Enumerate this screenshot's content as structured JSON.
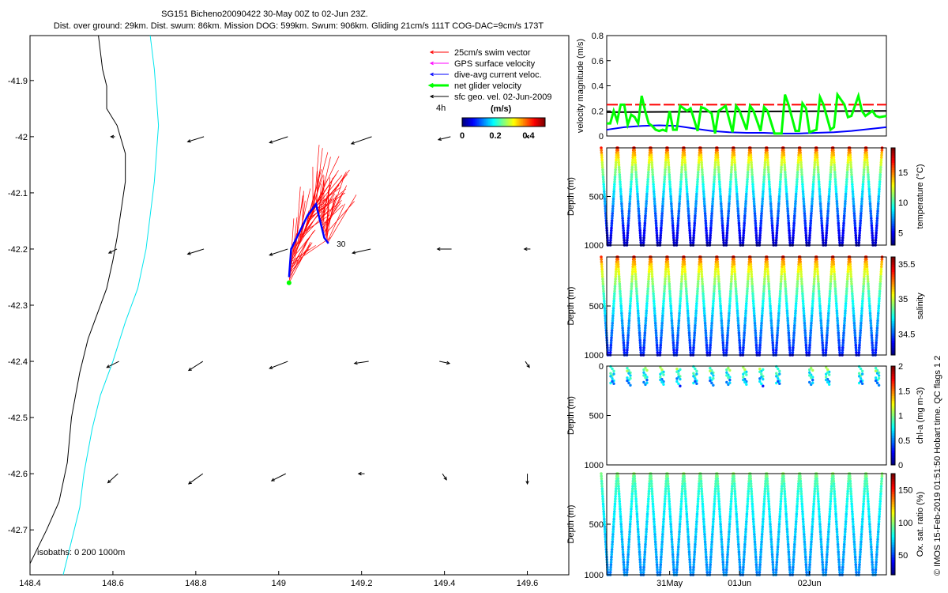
{
  "header": {
    "title": "SG151 Bicheno20090422 30-May 00Z to 02-Jun 23Z.",
    "subtitle": "Dist. over ground: 29km. Dist. swum: 86km. Mission DOG: 599km. Swum: 906km. Gliding 21cm/s 111T COG-DAC=9cm/s 173T"
  },
  "colors": {
    "swim": "#ff0000",
    "gps": "#ff00ff",
    "dac": "#0000ff",
    "net": "#00ff00",
    "geo": "#000000",
    "coast": "#000000",
    "isobath200": "#00e5ee"
  },
  "chart_data": [
    {
      "type": "vector-map",
      "xlim": [
        148.4,
        149.7
      ],
      "ylim": [
        -42.78,
        -41.82
      ],
      "xticks": [
        "148.4",
        "148.6",
        "148.8",
        "149",
        "149.2",
        "149.4",
        "149.6"
      ],
      "yticks": [
        "-41.9",
        "-42",
        "-42.1",
        "-42.2",
        "-42.3",
        "-42.4",
        "-42.5",
        "-42.6",
        "-42.7"
      ],
      "legend": {
        "placement": "top-right",
        "entries": [
          "25cm/s swim vector",
          "GPS surface velocity",
          "dive-avg current veloc.",
          "net glider velocity",
          "sfc geo. vel. 02-Jun-2009"
        ],
        "time_label": "4h",
        "units_label": "(m/s)",
        "colorbar_ticks": [
          "0",
          "0.2",
          "0.4"
        ],
        "colorbar_range": [
          0,
          0.5
        ]
      },
      "isobath_label": "isobaths: 0   200  1000m",
      "track_label": "30",
      "geo_vectors": [
        {
          "lon": 148.6,
          "lat": -42.0,
          "u": 0.02,
          "v": 0.0
        },
        {
          "lon": 148.8,
          "lat": -42.0,
          "u": 0.08,
          "v": 0.05
        },
        {
          "lon": 149.0,
          "lat": -42.0,
          "u": 0.09,
          "v": 0.06
        },
        {
          "lon": 149.2,
          "lat": -42.0,
          "u": 0.1,
          "v": 0.07
        },
        {
          "lon": 149.4,
          "lat": -42.0,
          "u": 0.06,
          "v": 0.03
        },
        {
          "lon": 149.6,
          "lat": -42.0,
          "u": 0.01,
          "v": 0.0
        },
        {
          "lon": 148.6,
          "lat": -42.2,
          "u": 0.04,
          "v": 0.04
        },
        {
          "lon": 148.8,
          "lat": -42.2,
          "u": 0.08,
          "v": 0.05
        },
        {
          "lon": 149.0,
          "lat": -42.2,
          "u": 0.09,
          "v": 0.06
        },
        {
          "lon": 149.2,
          "lat": -42.2,
          "u": 0.09,
          "v": 0.04
        },
        {
          "lon": 149.4,
          "lat": -42.2,
          "u": 0.07,
          "v": 0.0
        },
        {
          "lon": 149.6,
          "lat": -42.2,
          "u": 0.03,
          "v": 0.0
        },
        {
          "lon": 148.6,
          "lat": -42.4,
          "u": 0.06,
          "v": 0.06
        },
        {
          "lon": 148.8,
          "lat": -42.4,
          "u": 0.07,
          "v": 0.09
        },
        {
          "lon": 149.0,
          "lat": -42.4,
          "u": 0.09,
          "v": 0.07
        },
        {
          "lon": 149.2,
          "lat": -42.4,
          "u": 0.07,
          "v": 0.02
        },
        {
          "lon": 149.4,
          "lat": -42.4,
          "u": -0.05,
          "v": 0.02
        },
        {
          "lon": 149.6,
          "lat": -42.4,
          "u": -0.02,
          "v": 0.06
        },
        {
          "lon": 148.6,
          "lat": -42.6,
          "u": 0.05,
          "v": 0.09
        },
        {
          "lon": 148.8,
          "lat": -42.6,
          "u": 0.07,
          "v": 0.1
        },
        {
          "lon": 149.0,
          "lat": -42.6,
          "u": 0.07,
          "v": 0.07
        },
        {
          "lon": 149.2,
          "lat": -42.6,
          "u": 0.03,
          "v": 0.0
        },
        {
          "lon": 149.4,
          "lat": -42.6,
          "u": -0.02,
          "v": 0.06
        },
        {
          "lon": 149.6,
          "lat": -42.6,
          "u": 0.0,
          "v": 0.1
        }
      ],
      "track": [
        [
          149.025,
          -42.26
        ],
        [
          149.03,
          -42.23
        ],
        [
          149.04,
          -42.2
        ],
        [
          149.06,
          -42.17
        ],
        [
          149.075,
          -42.14
        ],
        [
          149.09,
          -42.12
        ],
        [
          149.1,
          -42.15
        ],
        [
          149.11,
          -42.17
        ],
        [
          149.12,
          -42.19
        ]
      ],
      "dac_track": [
        [
          149.025,
          -42.25
        ],
        [
          149.03,
          -42.2
        ],
        [
          149.05,
          -42.17
        ],
        [
          149.07,
          -42.14
        ],
        [
          149.09,
          -42.12
        ],
        [
          149.1,
          -42.15
        ],
        [
          149.11,
          -42.18
        ],
        [
          149.12,
          -42.19
        ]
      ]
    },
    {
      "type": "line",
      "ylabel": "velocity magnitude (m/s)",
      "ylim": [
        0,
        0.8
      ],
      "yticks": [
        "0",
        "0.2",
        "0.4",
        "0.6",
        "0.8"
      ],
      "x_days": [
        0,
        4
      ],
      "series": [
        {
          "color": "#ff0000",
          "dash": true,
          "x": [
            0,
            4
          ],
          "y": [
            0.25,
            0.25
          ]
        },
        {
          "color": "#000000",
          "x": [
            0,
            4
          ],
          "y": [
            0.19,
            0.2
          ]
        },
        {
          "color": "#0000ff",
          "x": [
            0,
            0.25,
            0.5,
            0.75,
            1,
            1.25,
            1.5,
            1.75,
            2,
            2.25,
            2.5,
            2.75,
            3,
            3.25,
            3.5,
            3.75,
            4
          ],
          "y": [
            0.05,
            0.07,
            0.08,
            0.085,
            0.08,
            0.06,
            0.04,
            0.03,
            0.025,
            0.025,
            0.02,
            0.02,
            0.025,
            0.03,
            0.04,
            0.055,
            0.07
          ]
        },
        {
          "color": "#00ff00",
          "thick": true,
          "x": [
            0,
            0.05,
            0.1,
            0.15,
            0.2,
            0.25,
            0.3,
            0.35,
            0.4,
            0.45,
            0.5,
            0.55,
            0.6,
            0.65,
            0.7,
            0.75,
            0.8,
            0.85,
            0.9,
            0.95,
            1.0,
            1.05,
            1.1,
            1.15,
            1.2,
            1.3,
            1.35,
            1.4,
            1.5,
            1.55,
            1.6,
            1.7,
            1.8,
            1.85,
            1.9,
            2.0,
            2.05,
            2.1,
            2.2,
            2.25,
            2.3,
            2.4,
            2.5,
            2.55,
            2.6,
            2.7,
            2.75,
            2.8,
            2.85,
            2.9,
            3.0,
            3.05,
            3.1,
            3.2,
            3.25,
            3.3,
            3.4,
            3.45,
            3.5,
            3.6,
            3.65,
            3.7,
            3.8,
            3.85,
            3.9,
            4.0
          ],
          "y": [
            0.1,
            0.1,
            0.2,
            0.12,
            0.25,
            0.25,
            0.09,
            0.17,
            0.15,
            0.1,
            0.32,
            0.2,
            0.1,
            0.08,
            0.05,
            0.04,
            0.05,
            0.04,
            0.2,
            0.05,
            0.05,
            0.24,
            0.22,
            0.2,
            0.22,
            0.04,
            0.23,
            0.22,
            0.18,
            0.02,
            0.2,
            0.24,
            0.03,
            0.24,
            0.2,
            0.05,
            0.24,
            0.2,
            0.04,
            0.23,
            0.2,
            0.02,
            0.02,
            0.33,
            0.25,
            0.04,
            0.04,
            0.26,
            0.22,
            0.03,
            0.05,
            0.31,
            0.25,
            0.05,
            0.07,
            0.33,
            0.25,
            0.15,
            0.16,
            0.32,
            0.2,
            0.16,
            0.2,
            0.16,
            0.15,
            0.16
          ]
        }
      ]
    },
    {
      "type": "scatter",
      "ylabel": "Depth (m)",
      "ylim": [
        0,
        1000
      ],
      "yticks": [
        "500",
        "1000"
      ],
      "variable": "temperature",
      "clabel": "temperature (°C)",
      "cticks": [
        "5",
        "10",
        "15"
      ],
      "crange": [
        3,
        19
      ],
      "surface_value": 17,
      "deep_value": 4,
      "max_depth": 1000,
      "dives": 17
    },
    {
      "type": "scatter",
      "ylabel": "Depth (m)",
      "ylim": [
        0,
        1000
      ],
      "yticks": [
        "500",
        "1000"
      ],
      "variable": "salinity",
      "clabel": "salinity",
      "cticks": [
        "34.5",
        "35",
        "35.5"
      ],
      "crange": [
        34.2,
        35.6
      ],
      "surface_value": 35.4,
      "deep_value": 34.4,
      "max_depth": 1000,
      "dives": 17
    },
    {
      "type": "scatter",
      "ylabel": "Depth (m)",
      "ylim": [
        0,
        1000
      ],
      "yticks": [
        "0",
        "500",
        "1000"
      ],
      "variable": "chl-a",
      "clabel": "chl-a (mg m-3)",
      "cticks": [
        "0",
        "0.5",
        "1",
        "1.5",
        "2"
      ],
      "crange": [
        0,
        2
      ],
      "dives": 17,
      "max_depth": 250
    },
    {
      "type": "scatter",
      "ylabel": "Depth (m)",
      "ylim": [
        0,
        1000
      ],
      "yticks": [
        "500",
        "1000"
      ],
      "variable": "oxygen",
      "clabel": "Ox. sat. ratio (%)",
      "cticks": [
        "50",
        "100",
        "150"
      ],
      "crange": [
        20,
        175
      ],
      "surface_value": 100,
      "deep_value": 60,
      "max_depth": 1000,
      "dives": 17,
      "xticks": [
        "31May",
        "01Jun",
        "02Jun"
      ],
      "xtick_days": [
        0.9,
        1.9,
        2.9
      ]
    }
  ],
  "footer": {
    "credit": "© IMOS 15-Feb-2019 01:51:50 Hobart time. QC flags 1  2"
  }
}
